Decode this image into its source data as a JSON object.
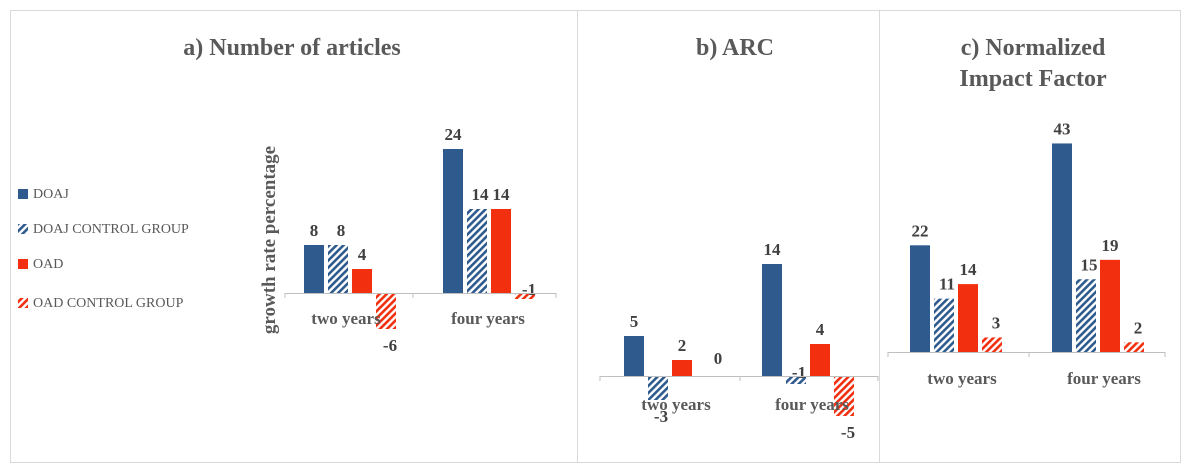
{
  "legend": [
    {
      "name": "DOAJ",
      "color": "#2e5a8e",
      "pattern": "solid"
    },
    {
      "name": "DOAJ CONTROL GROUP",
      "color": "#2e5a8e",
      "pattern": "hatch"
    },
    {
      "name": "OAD",
      "color": "#f2300f",
      "pattern": "solid"
    },
    {
      "name": "OAD CONTROL GROUP",
      "color": "#f2300f",
      "pattern": "hatch"
    }
  ],
  "ylabel": "growth rate percentage",
  "chart_data": [
    {
      "type": "bar",
      "title": "a) Number of articles",
      "categories": [
        "two years",
        "four years"
      ],
      "series": [
        {
          "name": "DOAJ",
          "values": [
            8,
            24
          ]
        },
        {
          "name": "DOAJ CONTROL GROUP",
          "values": [
            8,
            14
          ]
        },
        {
          "name": "OAD",
          "values": [
            4,
            14
          ]
        },
        {
          "name": "OAD CONTROL GROUP",
          "values": [
            -6,
            -1
          ]
        }
      ],
      "ylabel": "growth rate percentage",
      "legend": "left"
    },
    {
      "type": "bar",
      "title": "b) ARC",
      "categories": [
        "two years",
        "four years"
      ],
      "series": [
        {
          "name": "DOAJ",
          "values": [
            5,
            14
          ]
        },
        {
          "name": "DOAJ CONTROL GROUP",
          "values": [
            -3,
            -1
          ]
        },
        {
          "name": "OAD",
          "values": [
            2,
            4
          ]
        },
        {
          "name": "OAD CONTROL GROUP",
          "values": [
            0,
            -5
          ]
        }
      ]
    },
    {
      "type": "bar",
      "title": "c) Normalized Impact Factor",
      "title_lines": [
        "c) Normalized",
        "Impact Factor"
      ],
      "categories": [
        "two years",
        "four years"
      ],
      "series": [
        {
          "name": "DOAJ",
          "values": [
            22,
            43
          ]
        },
        {
          "name": "DOAJ CONTROL GROUP",
          "values": [
            11,
            15
          ]
        },
        {
          "name": "OAD",
          "values": [
            14,
            19
          ]
        },
        {
          "name": "OAD CONTROL GROUP",
          "values": [
            3,
            2
          ]
        }
      ]
    }
  ]
}
